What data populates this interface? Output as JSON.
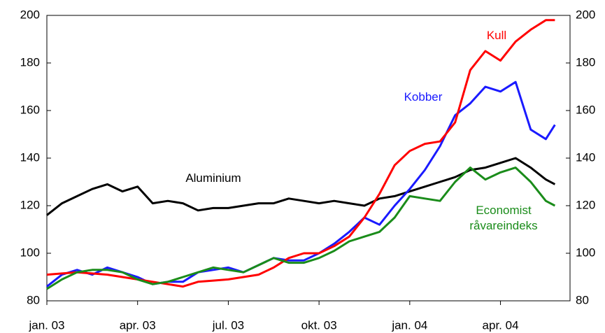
{
  "chart_data": {
    "type": "line",
    "x": [
      0,
      0.5,
      1,
      1.5,
      2,
      2.5,
      3,
      3.5,
      4,
      4.5,
      5,
      5.5,
      6,
      6.5,
      7,
      7.5,
      8,
      8.5,
      9,
      9.5,
      10,
      10.5,
      11,
      11.5,
      12,
      12.5,
      13,
      13.5,
      14,
      14.5,
      15,
      15.5,
      16,
      16.5,
      16.8
    ],
    "series": [
      {
        "name": "Aluminium",
        "color": "#000000",
        "values": [
          116,
          121,
          124,
          127,
          129,
          126,
          128,
          121,
          122,
          121,
          118,
          119,
          119,
          120,
          121,
          121,
          123,
          122,
          121,
          122,
          121,
          120,
          123,
          124,
          126,
          128,
          130,
          132,
          135,
          136,
          138,
          140,
          136,
          131,
          129
        ]
      },
      {
        "name": "Kobber",
        "color": "#1a1aff",
        "values": [
          86,
          91,
          93,
          91,
          94,
          92,
          90,
          87,
          88,
          88,
          92,
          93,
          94,
          92,
          95,
          98,
          97,
          97,
          100,
          104,
          109,
          115,
          112,
          120,
          127,
          135,
          145,
          158,
          163,
          170,
          168,
          172,
          152,
          148,
          154
        ]
      },
      {
        "name": "Kull",
        "color": "#ff0000",
        "values": [
          91,
          91.5,
          92,
          91.5,
          91,
          90,
          89,
          88,
          87,
          86,
          88,
          88.5,
          89,
          90,
          91,
          94,
          98,
          100,
          100,
          103,
          107,
          115,
          125,
          137,
          143,
          146,
          147,
          155,
          177,
          185,
          181,
          189,
          194,
          198,
          198
        ]
      },
      {
        "name": "Economist råvareindeks",
        "color": "#1a8c1a",
        "values": [
          85,
          89,
          92,
          93,
          93,
          92,
          89,
          87,
          88,
          90,
          92,
          94,
          93,
          92,
          95,
          98,
          96,
          96,
          98,
          101,
          105,
          107,
          109,
          115,
          124,
          123,
          122,
          130,
          136,
          131,
          134,
          136,
          130,
          122,
          120
        ]
      }
    ],
    "xlim": [
      0,
      17.3
    ],
    "xticks": [
      {
        "value": 0,
        "label": "jan. 03"
      },
      {
        "value": 3,
        "label": "apr. 03"
      },
      {
        "value": 6,
        "label": "jul. 03"
      },
      {
        "value": 9,
        "label": "okt. 03"
      },
      {
        "value": 12,
        "label": "jan. 04"
      },
      {
        "value": 15,
        "label": "apr. 04"
      }
    ],
    "ylim": [
      80,
      200
    ],
    "yticks": [
      80,
      100,
      120,
      140,
      160,
      180,
      200
    ],
    "y2lim": [
      80,
      200
    ],
    "y2ticks": [
      80,
      100,
      120,
      140,
      160,
      180,
      200
    ],
    "grid": false
  }
}
